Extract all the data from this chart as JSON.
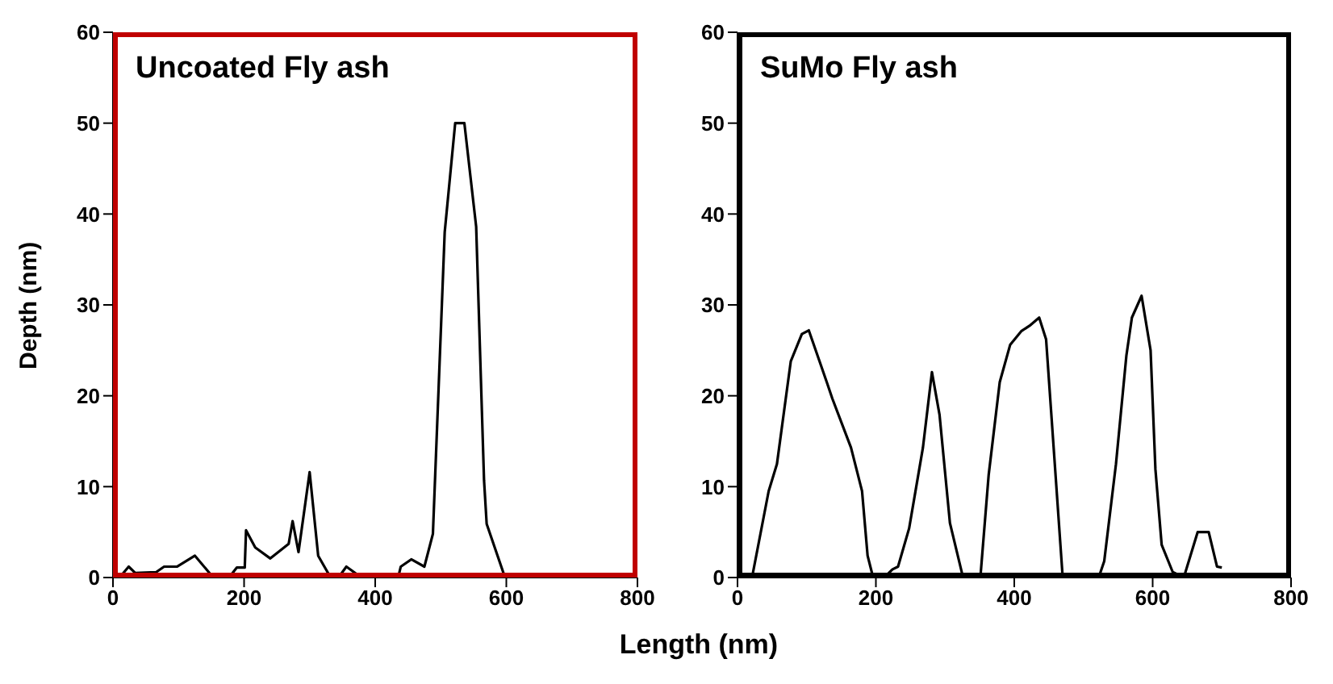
{
  "chart_data": [
    {
      "type": "line",
      "title": "Uncoated Fly ash",
      "ylabel": "Depth (nm)",
      "xlabel": "Length (nm)",
      "xlim": [
        0,
        800
      ],
      "xticks": [
        0,
        200,
        400,
        600,
        800
      ],
      "ylim": [
        0,
        60
      ],
      "yticks": [
        0,
        10,
        20,
        30,
        40,
        50,
        60
      ],
      "line_style": "solid",
      "series": [
        {
          "color": "#000000",
          "x": [
            10,
            24,
            34,
            66,
            78,
            98,
            125,
            153,
            177,
            189,
            201,
            203,
            217,
            240,
            268,
            274,
            283,
            300,
            313,
            332,
            344,
            356,
            379,
            435,
            439,
            455,
            475,
            488,
            506,
            522,
            536,
            554,
            566,
            570,
            598
          ],
          "values": [
            0,
            1.2,
            0.5,
            0.6,
            1.2,
            1.2,
            2.4,
            0,
            0,
            1.1,
            1.1,
            5.2,
            3.3,
            2.1,
            3.7,
            6.2,
            2.8,
            11.6,
            2.4,
            0,
            0,
            1.2,
            0,
            0,
            1.2,
            2,
            1.2,
            4.8,
            38,
            50,
            50,
            38.6,
            10.7,
            5.9,
            0
          ]
        }
      ]
    },
    {
      "type": "line",
      "title": "SuMo Fly ash",
      "xlim": [
        0,
        800
      ],
      "xticks": [
        0,
        200,
        400,
        600,
        800
      ],
      "ylim": [
        0,
        60
      ],
      "yticks": [
        0,
        10,
        20,
        30,
        40,
        50,
        60
      ],
      "line_style": "solid",
      "series": [
        {
          "color": "#000000",
          "x": [
            21,
            45,
            57,
            77,
            93,
            103,
            129,
            137,
            164,
            180,
            188,
            196,
            212,
            224,
            232,
            248,
            268,
            281,
            292,
            307,
            326,
            351,
            363,
            379,
            394,
            410,
            422,
            436,
            446,
            470,
            522,
            530,
            547,
            562,
            570,
            584,
            597,
            604,
            613,
            629,
            645,
            665,
            681,
            693,
            700
          ],
          "values": [
            0,
            9.5,
            12.5,
            23.8,
            26.8,
            27.2,
            21.5,
            19.7,
            14.3,
            9.5,
            2.4,
            0,
            0,
            0.9,
            1.2,
            5.4,
            14.3,
            22.6,
            17.9,
            6,
            0,
            0,
            11.3,
            21.5,
            25.6,
            27.1,
            27.7,
            28.6,
            26.2,
            0,
            0,
            1.8,
            12.5,
            24.4,
            28.6,
            31,
            25,
            11.9,
            3.6,
            0.6,
            0,
            5,
            5,
            1.2,
            1.1
          ]
        }
      ]
    }
  ]
}
